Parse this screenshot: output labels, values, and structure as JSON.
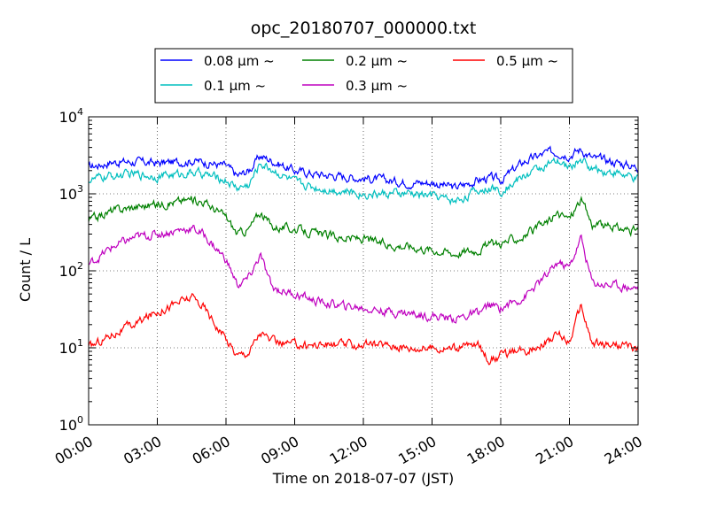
{
  "chart_data": {
    "type": "line",
    "title": "opc_20180707_000000.txt",
    "xlabel": "Time on 2018-07-07 (JST)",
    "ylabel": "Count / L",
    "xlim": [
      "00:00",
      "24:00"
    ],
    "ylim": [
      1,
      10000
    ],
    "yscale": "log",
    "grid": true,
    "legend_position": "top",
    "x_ticks": [
      "00:00",
      "03:00",
      "06:00",
      "09:00",
      "12:00",
      "15:00",
      "18:00",
      "21:00",
      "24:00"
    ],
    "y_ticks": [
      {
        "base": "10",
        "exp": "0"
      },
      {
        "base": "10",
        "exp": "1"
      },
      {
        "base": "10",
        "exp": "2"
      },
      {
        "base": "10",
        "exp": "3"
      },
      {
        "base": "10",
        "exp": "4"
      }
    ],
    "x_hours": [
      0,
      1,
      2,
      3,
      4,
      4.5,
      5,
      6,
      6.5,
      7,
      7.5,
      8,
      9,
      10,
      11,
      12,
      13,
      14,
      15,
      16,
      17,
      17.5,
      18,
      19,
      20,
      20.5,
      21,
      21.5,
      22,
      23,
      24
    ],
    "series": [
      {
        "name": "0.08 μm ~",
        "color": "#0000ff",
        "values": [
          2200,
          2600,
          2600,
          2500,
          2600,
          2700,
          2600,
          2300,
          1700,
          2000,
          3100,
          2700,
          2000,
          1800,
          1700,
          1600,
          1500,
          1400,
          1400,
          1200,
          1500,
          1600,
          1500,
          2600,
          3400,
          3500,
          3200,
          3800,
          2900,
          2600,
          2200
        ]
      },
      {
        "name": "0.1 μm ~",
        "color": "#00bfbf",
        "values": [
          1500,
          1700,
          1800,
          1700,
          1800,
          1900,
          1800,
          1500,
          1200,
          1300,
          2500,
          2100,
          1400,
          1200,
          1100,
          1000,
          1000,
          1000,
          950,
          800,
          1100,
          1200,
          1100,
          1700,
          2400,
          2500,
          2200,
          2800,
          2100,
          1900,
          1500
        ]
      },
      {
        "name": "0.2 μm ~",
        "color": "#008000",
        "values": [
          450,
          600,
          680,
          730,
          800,
          850,
          800,
          500,
          300,
          350,
          580,
          380,
          350,
          300,
          270,
          260,
          220,
          210,
          190,
          170,
          190,
          220,
          230,
          280,
          420,
          540,
          480,
          850,
          400,
          360,
          330
        ]
      },
      {
        "name": "0.3 μm ~",
        "color": "#bf00bf",
        "values": [
          120,
          200,
          270,
          300,
          340,
          360,
          300,
          140,
          65,
          80,
          160,
          60,
          50,
          40,
          35,
          33,
          30,
          28,
          26,
          24,
          28,
          35,
          33,
          45,
          85,
          130,
          110,
          270,
          70,
          65,
          60
        ]
      },
      {
        "name": "0.5 μm ~",
        "color": "#ff0000",
        "values": [
          10,
          15,
          20,
          30,
          40,
          45,
          35,
          13,
          8,
          9,
          16,
          12,
          11,
          11,
          11,
          11,
          11,
          10,
          10,
          10,
          11,
          7,
          8,
          9,
          12,
          15,
          12,
          35,
          11,
          11,
          10
        ]
      }
    ]
  }
}
